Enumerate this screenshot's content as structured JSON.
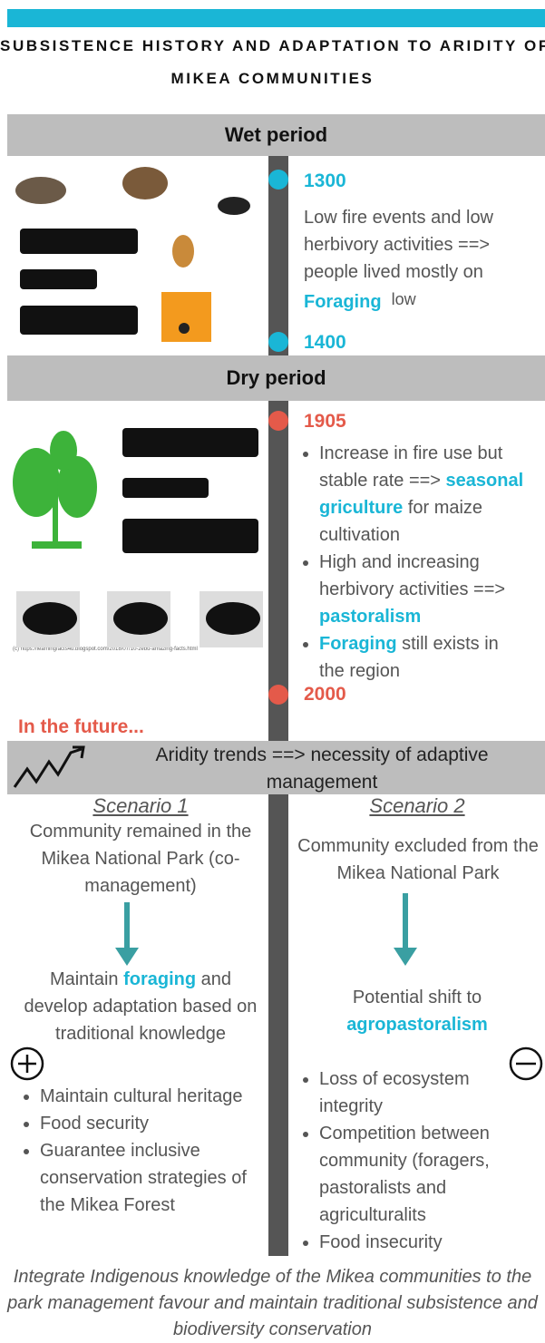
{
  "header": {
    "title_lines": [
      "SUBSISTENCE HISTORY AND ADAPTATION TO ARIDITY OF THE",
      "MIKEA COMMUNITIES"
    ]
  },
  "wet_period": {
    "heading": "Wet period",
    "start": "1300",
    "text": "Low fire events and low herbivory activities ==> people lived mostly on",
    "highlight": "Foraging",
    "after": "low",
    "end": "1400"
  },
  "dry_period": {
    "heading": "Dry period",
    "start": "1905",
    "bullets": [
      {
        "text": "Increase in fire use but stable rate ==>",
        "highlight": "seasonal griculture",
        "after": "for maize cultivation"
      },
      {
        "text": "High and increasing herbivory activities ==>",
        "highlight": "pastoralism",
        "after": ""
      },
      {
        "text": "",
        "highlight": "Foraging",
        "after": "still exists in the region"
      }
    ],
    "image_credit": "(c) https://learningfacts4u.blogspot.com/2018/07/10-zebu-amazing-facts.html",
    "end": "2000"
  },
  "future": {
    "heading": "In the future...",
    "banner": "Aridity trends ==> necessity of adaptive management",
    "scenario_1": {
      "title": "Scenario 1",
      "description": "Community remained in the Mikea National Park (co-management)",
      "outcome": "Maintain",
      "highlight": "foraging",
      "outcome_after": "and develop adaptation based on traditional knowledge",
      "bullets": [
        "Maintain cultural heritage",
        "Food security",
        "Guarantee inclusive  conservation strategies of the Mikea Forest"
      ]
    },
    "scenario_2": {
      "title": "Scenario 2",
      "description": "Community excluded from the Mikea National Park",
      "outcome": "Potential shift to",
      "highlight": "agropastoralism",
      "bullets": [
        "Loss of ecosystem integrity",
        "Competition between community (foragers, pastoralists and agriculturalits",
        "Food insecurity"
      ]
    }
  },
  "footer": {
    "text": "Integrate Indigenous knowledge of the Mikea communities to the park management favour and maintain traditional subsistence and biodiversity conservation"
  }
}
